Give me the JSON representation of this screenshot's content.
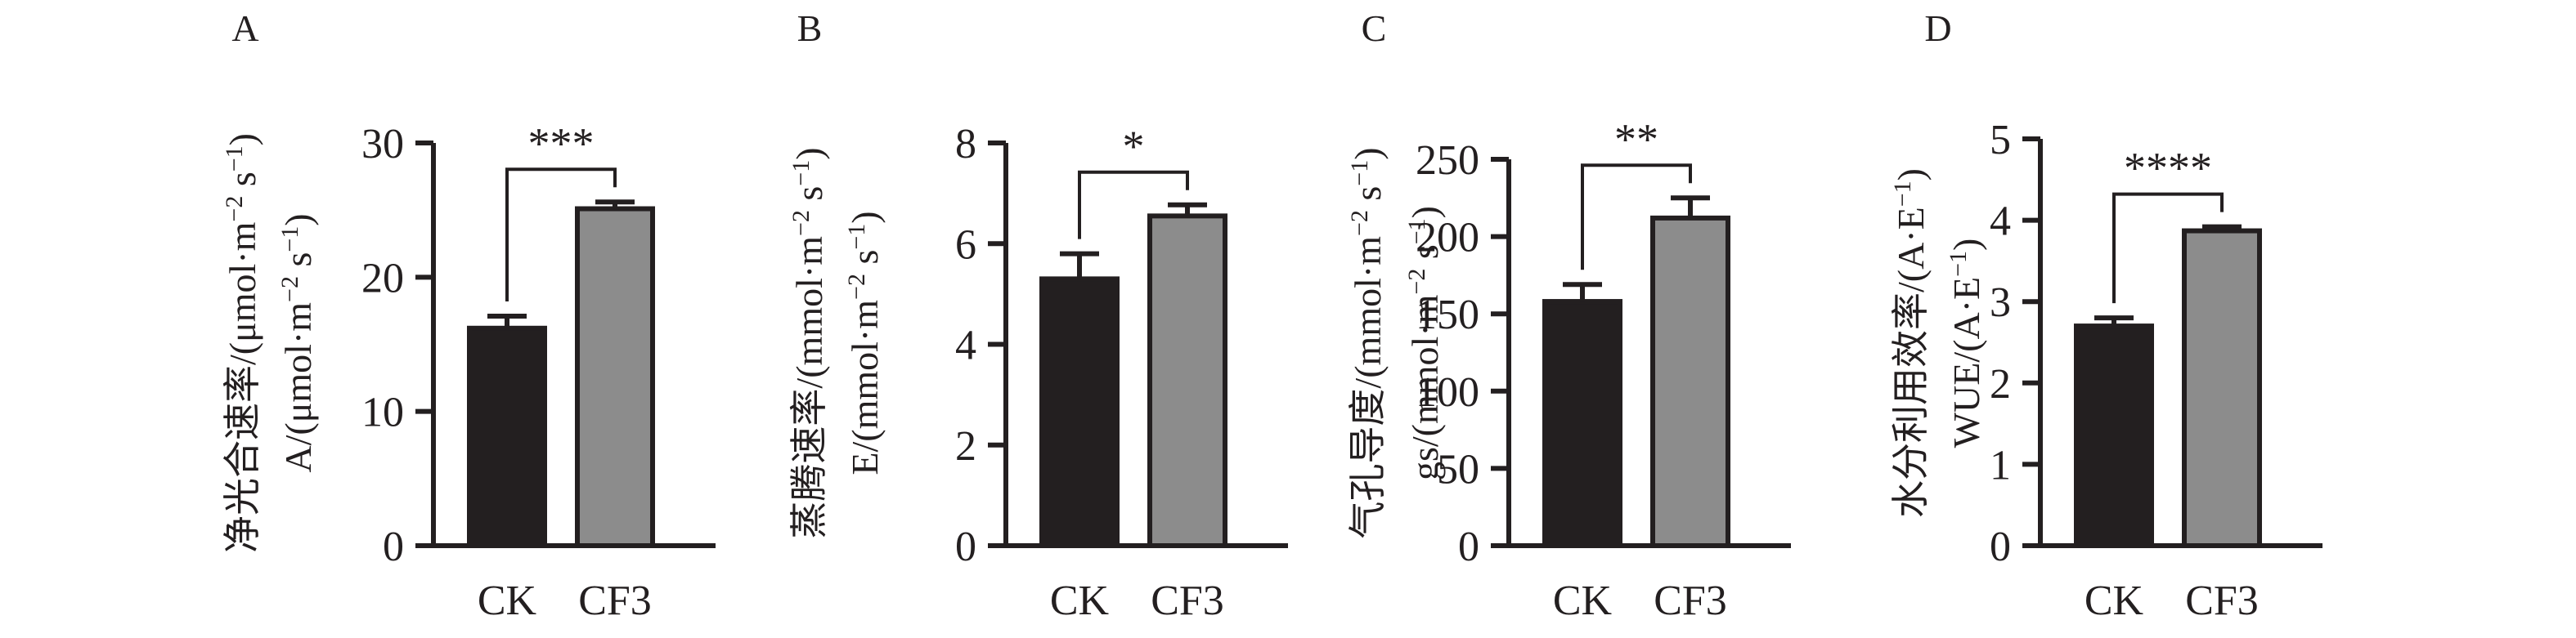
{
  "colors": {
    "ink": "#231f20",
    "ck_fill": "#231f20",
    "cf3_fill": "#8c8c8c"
  },
  "chart_data": [
    {
      "type": "bar",
      "panel_label": "A",
      "ylabel_cn": "净光合速率/(μmol·m",
      "ylabel_cn_tail": " s",
      "ylabel_en": "A/(μmol·m",
      "ylabel_en_tail": " s",
      "categories": [
        "CK",
        "CF3"
      ],
      "values": [
        16.2,
        25.1
      ],
      "errors": [
        0.9,
        0.5
      ],
      "ylim": [
        0,
        30
      ],
      "yticks": [
        0,
        10,
        20,
        30
      ],
      "significance": "***"
    },
    {
      "type": "bar",
      "panel_label": "B",
      "ylabel_cn": "蒸腾速率/(mmol·m",
      "ylabel_cn_tail": " s",
      "ylabel_en": "E/(mmol·m",
      "ylabel_en_tail": " s",
      "categories": [
        "CK",
        "CF3"
      ],
      "values": [
        5.3,
        6.55
      ],
      "errors": [
        0.5,
        0.22
      ],
      "ylim": [
        0,
        8
      ],
      "yticks": [
        0,
        2,
        4,
        6,
        8
      ],
      "significance": "*"
    },
    {
      "type": "bar",
      "panel_label": "C",
      "ylabel_cn": "气孔导度/(mmol·m",
      "ylabel_cn_tail": " s",
      "ylabel_en": "gs/(mmol·m",
      "ylabel_en_tail": " s",
      "categories": [
        "CK",
        "CF3"
      ],
      "values": [
        158,
        212
      ],
      "errors": [
        11,
        13
      ],
      "ylim": [
        0,
        250
      ],
      "yticks": [
        0,
        50,
        100,
        150,
        200,
        250
      ],
      "significance": "**"
    },
    {
      "type": "bar",
      "panel_label": "D",
      "ylabel_cn": "水分利用效率/(A·E",
      "ylabel_cn_tail": ")",
      "ylabel_en": "WUE/(A·E",
      "ylabel_en_tail": ")",
      "categories": [
        "CK",
        "CF3"
      ],
      "values": [
        2.7,
        3.87
      ],
      "errors": [
        0.1,
        0.05
      ],
      "ylim": [
        0,
        5
      ],
      "yticks": [
        0,
        1,
        2,
        3,
        4,
        5
      ],
      "significance": "****"
    }
  ]
}
